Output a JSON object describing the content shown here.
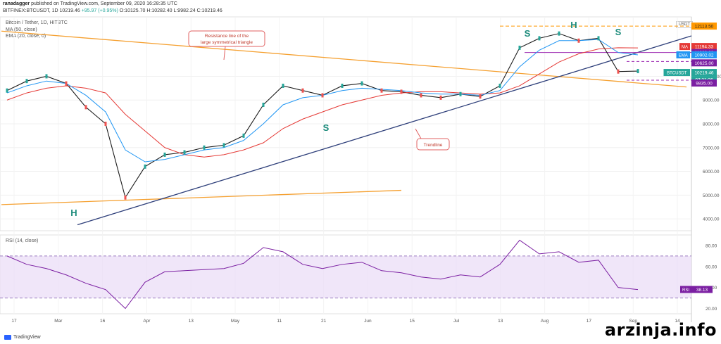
{
  "header": {
    "author": "ranadagger",
    "published": "published on TradingView.com, September 09, 2020 16:28:35 UTC",
    "symbol_line": "BITFINEX:BTCUSDT, 1D",
    "ticker_value": "10219.46",
    "change": "+95.97 (+0.95%)",
    "ohlc": "O:10125.70 H:10282.40 L:9982.24 C:10219.46"
  },
  "legend": {
    "title": "Bitcoin / Tether, 1D, HITBTC",
    "ma": "MA (50, close)",
    "ema": "EMA (20, close, 0)",
    "rsi": "RSI (14, close)"
  },
  "annotations": {
    "resistance": "Resistance line of the large symmetrical triangle",
    "trendline": "Trendline",
    "h_left": "H",
    "h_right": "H",
    "s1": "S",
    "s2": "S",
    "s3": "S"
  },
  "price_tags": [
    {
      "label": "",
      "value": "12113.50",
      "color": "#ff9800",
      "text": "#222"
    },
    {
      "label": "MA",
      "value": "11194.33",
      "color": "#e53935",
      "text": "#fff"
    },
    {
      "label": "",
      "value": "11000.00",
      "color": "#7b1fa2",
      "text": "#fff"
    },
    {
      "label": "EMA",
      "value": "10902.02",
      "color": "#2196f3",
      "text": "#fff"
    },
    {
      "label": "",
      "value": "10625.00",
      "color": "#7b1fa2",
      "text": "#fff"
    },
    {
      "label": "BTCUSDT",
      "value": "10219.46",
      "color": "#26a69a",
      "text": "#fff"
    },
    {
      "label": "",
      "value": "07:31:26",
      "color": "#26a69a",
      "text": "#fff"
    },
    {
      "label": "",
      "value": "9835.00",
      "color": "#7b1fa2",
      "text": "#fff"
    }
  ],
  "currency_label": "USDT",
  "rsi_tag": {
    "label": "RSI",
    "value": "38.13"
  },
  "chart_data": [
    {
      "type": "line",
      "title": "Bitcoin / Tether, 1D",
      "xlabel": "",
      "ylabel": "",
      "ylim": [
        3500,
        12500
      ],
      "y_ticks": [
        4000,
        5000,
        6000,
        7000,
        8000,
        9000,
        10000
      ],
      "x_ticks": [
        "17",
        "Mar",
        "16",
        "Apr",
        "13",
        "May",
        "11",
        "21",
        "Jun",
        "15",
        "Jul",
        "13",
        "Aug",
        "17",
        "Sep",
        "14"
      ],
      "series": [
        {
          "name": "BTCUSDT",
          "x": [
            "Feb 01",
            "Feb 08",
            "Feb 15",
            "Feb 22",
            "Mar 01",
            "Mar 08",
            "Mar 13",
            "Mar 20",
            "Mar 27",
            "Apr 03",
            "Apr 10",
            "Apr 17",
            "Apr 24",
            "May 01",
            "May 08",
            "May 15",
            "May 22",
            "May 29",
            "Jun 05",
            "Jun 12",
            "Jun 19",
            "Jun 26",
            "Jul 03",
            "Jul 10",
            "Jul 17",
            "Jul 24",
            "Jul 31",
            "Aug 07",
            "Aug 14",
            "Aug 21",
            "Aug 28",
            "Sep 04",
            "Sep 09"
          ],
          "values": [
            9400,
            9800,
            10000,
            9700,
            8700,
            8000,
            4900,
            6200,
            6700,
            6800,
            7000,
            7100,
            7500,
            8800,
            9600,
            9400,
            9200,
            9600,
            9700,
            9400,
            9350,
            9200,
            9100,
            9250,
            9150,
            9600,
            11200,
            11600,
            11800,
            11500,
            11600,
            10200,
            10219
          ]
        },
        {
          "name": "MA (50, close)",
          "values": [
            9000,
            9300,
            9500,
            9600,
            9500,
            9300,
            8400,
            7700,
            7000,
            6700,
            6600,
            6700,
            6900,
            7200,
            7800,
            8200,
            8500,
            8800,
            9000,
            9200,
            9300,
            9350,
            9350,
            9300,
            9250,
            9300,
            9600,
            10100,
            10600,
            10950,
            11150,
            11200,
            11194
          ]
        },
        {
          "name": "EMA (20, close, 0)",
          "values": [
            9300,
            9600,
            9800,
            9700,
            9200,
            8500,
            6900,
            6400,
            6500,
            6700,
            6900,
            7000,
            7300,
            8000,
            8800,
            9100,
            9200,
            9400,
            9500,
            9450,
            9400,
            9300,
            9250,
            9250,
            9200,
            9400,
            10400,
            11100,
            11500,
            11500,
            11550,
            11000,
            10902
          ]
        }
      ]
    },
    {
      "type": "line",
      "title": "RSI (14, close)",
      "ylim": [
        15,
        90
      ],
      "y_ticks": [
        20,
        40,
        60,
        80
      ],
      "series": [
        {
          "name": "RSI (14, close)",
          "values": [
            70,
            62,
            58,
            52,
            44,
            38,
            20,
            45,
            55,
            56,
            57,
            58,
            63,
            78,
            74,
            62,
            58,
            62,
            64,
            56,
            54,
            50,
            48,
            52,
            50,
            62,
            85,
            72,
            74,
            64,
            66,
            40,
            38
          ]
        }
      ]
    }
  ]
}
